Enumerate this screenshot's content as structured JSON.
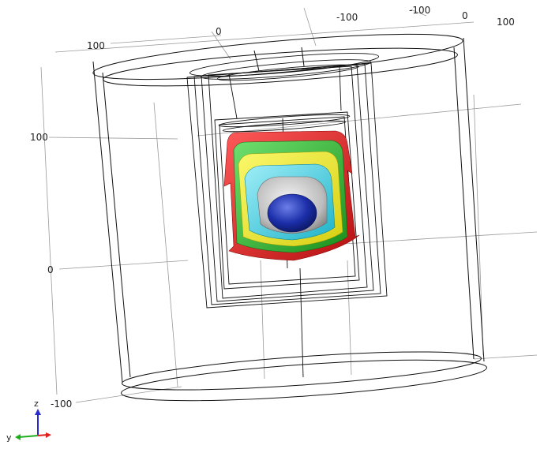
{
  "axis_labels": {
    "top_ticks": [
      "-100",
      "-100",
      "0",
      "100",
      "0",
      "100"
    ],
    "left_ticks": [
      "100",
      "0",
      "-100"
    ]
  },
  "triad": {
    "z_label": "z",
    "y_label": "y"
  },
  "colors": {
    "shell_red": "#e21b1b",
    "shell_green": "#2ab52a",
    "shell_yellow": "#f2ee2a",
    "shell_cyan": "#3fd0e2",
    "shell_gray": "#bdbdbd",
    "core_blue": "#1b2ea8",
    "wireframe": "#111111",
    "grid": "#9a9a9a"
  }
}
